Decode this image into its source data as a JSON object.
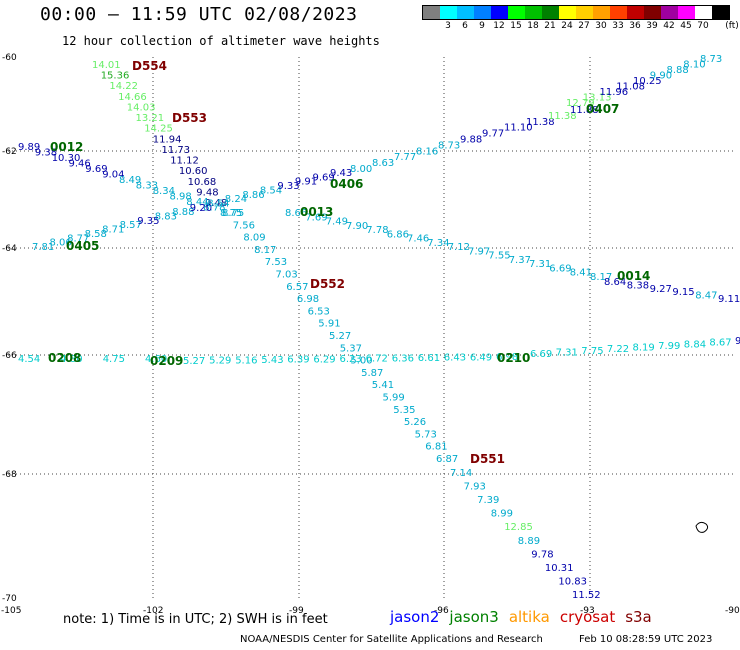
{
  "header": {
    "title": "00:00 – 11:59 UTC 02/08/2023",
    "subtitle": "12 hour collection of altimeter wave heights"
  },
  "legend": {
    "unit": "(ft)",
    "bins": [
      {
        "color": "#7f7f7f",
        "label": ""
      },
      {
        "color": "#00ffff",
        "label": "3"
      },
      {
        "color": "#00bfff",
        "label": "6"
      },
      {
        "color": "#0080ff",
        "label": "9"
      },
      {
        "color": "#0000ff",
        "label": "12"
      },
      {
        "color": "#00ff00",
        "label": "15"
      },
      {
        "color": "#00c000",
        "label": "18"
      },
      {
        "color": "#008000",
        "label": "21"
      },
      {
        "color": "#ffff00",
        "label": "24"
      },
      {
        "color": "#ffd000",
        "label": "27"
      },
      {
        "color": "#ffa000",
        "label": "30"
      },
      {
        "color": "#ff4000",
        "label": "33"
      },
      {
        "color": "#c00000",
        "label": "36"
      },
      {
        "color": "#800000",
        "label": "39"
      },
      {
        "color": "#a000a0",
        "label": "42"
      },
      {
        "color": "#ff00ff",
        "label": "45"
      },
      {
        "color": "#ffffff",
        "label": "70"
      },
      {
        "color": "#000000",
        "label": ""
      }
    ]
  },
  "map": {
    "lon_labels": [
      "-105",
      "-102",
      "-99",
      "-96",
      "-93",
      "-90"
    ],
    "lat_labels": [
      "-60",
      "-62",
      "-64",
      "-66",
      "-68",
      "-70"
    ],
    "tracks": [
      {
        "id": "D554",
        "label_color": "#800000",
        "points": [
          {
            "t": "14.01",
            "c": "#66ee66"
          },
          {
            "t": "15.36",
            "c": "#22aa22"
          },
          {
            "t": "14.22",
            "c": "#66ee66"
          },
          {
            "t": "14.66",
            "c": "#66ee66"
          },
          {
            "t": "14.03",
            "c": "#66ee66"
          },
          {
            "t": "13.21",
            "c": "#66ee66"
          },
          {
            "t": "14.25",
            "c": "#66ee66"
          },
          {
            "t": "11.94",
            "c": "#000080"
          },
          {
            "t": "11.73",
            "c": "#000080"
          },
          {
            "t": "11.12",
            "c": "#000080"
          },
          {
            "t": "10.60",
            "c": "#000080"
          },
          {
            "t": "10.68",
            "c": "#000080"
          },
          {
            "t": "9.48",
            "c": "#000080"
          },
          {
            "t": "9.48",
            "c": "#000080"
          }
        ]
      },
      {
        "id": "D553",
        "label_color": "#800000",
        "points": []
      },
      {
        "id": "D552",
        "label_color": "#800000",
        "points": [
          {
            "t": "8.75",
            "c": "#00aacc"
          },
          {
            "t": "7.56",
            "c": "#00aacc"
          },
          {
            "t": "8.09",
            "c": "#00aacc"
          },
          {
            "t": "8.17",
            "c": "#00aacc"
          },
          {
            "t": "7.53",
            "c": "#00aacc"
          },
          {
            "t": "7.03",
            "c": "#00aacc"
          },
          {
            "t": "6.57",
            "c": "#00aacc"
          },
          {
            "t": "6.98",
            "c": "#00aacc"
          },
          {
            "t": "6.53",
            "c": "#00aacc"
          },
          {
            "t": "5.91",
            "c": "#00aacc"
          },
          {
            "t": "5.27",
            "c": "#00aacc"
          },
          {
            "t": "5.37",
            "c": "#00aacc"
          },
          {
            "t": "5.00",
            "c": "#00aacc"
          },
          {
            "t": "5.87",
            "c": "#00aacc"
          },
          {
            "t": "5.41",
            "c": "#00aacc"
          },
          {
            "t": "5.99",
            "c": "#00aacc"
          },
          {
            "t": "5.35",
            "c": "#00aacc"
          },
          {
            "t": "5.26",
            "c": "#00aacc"
          },
          {
            "t": "5.73",
            "c": "#00aacc"
          },
          {
            "t": "6.81",
            "c": "#00aacc"
          },
          {
            "t": "6.87",
            "c": "#00aacc"
          }
        ]
      },
      {
        "id": "D551",
        "label_color": "#800000",
        "points": [
          {
            "t": "7.14",
            "c": "#00aacc"
          },
          {
            "t": "7.93",
            "c": "#00aacc"
          },
          {
            "t": "7.39",
            "c": "#00aacc"
          },
          {
            "t": "8.99",
            "c": "#00aacc"
          },
          {
            "t": "12.85",
            "c": "#66ee66"
          },
          {
            "t": "8.89",
            "c": "#00aacc"
          },
          {
            "t": "9.78",
            "c": "#0000aa"
          },
          {
            "t": "10.31",
            "c": "#0000aa"
          },
          {
            "t": "10.83",
            "c": "#0000aa"
          },
          {
            "t": "11.52",
            "c": "#0000aa"
          }
        ]
      },
      {
        "id": "0012",
        "label_color": "#006600",
        "points": [
          {
            "t": "9.89",
            "c": "#0000aa"
          },
          {
            "t": "9.38",
            "c": "#0000aa"
          },
          {
            "t": "10.30",
            "c": "#0000aa"
          },
          {
            "t": "9.46",
            "c": "#0000aa"
          },
          {
            "t": "9.69",
            "c": "#0000aa"
          },
          {
            "t": "9.04",
            "c": "#0000aa"
          },
          {
            "t": "8.49",
            "c": "#00aacc"
          },
          {
            "t": "8.33",
            "c": "#00aacc"
          },
          {
            "t": "8.34",
            "c": "#00aacc"
          },
          {
            "t": "8.98",
            "c": "#00aacc"
          },
          {
            "t": "8.44",
            "c": "#00aacc"
          },
          {
            "t": "8.78",
            "c": "#00aacc"
          },
          {
            "t": "8.75",
            "c": "#00aacc"
          }
        ]
      },
      {
        "id": "0013",
        "label_color": "#006600",
        "points": [
          {
            "t": "8.66",
            "c": "#00aacc"
          },
          {
            "t": "7.69",
            "c": "#00aacc"
          },
          {
            "t": "7.49",
            "c": "#00aacc"
          },
          {
            "t": "7.90",
            "c": "#00aacc"
          },
          {
            "t": "7.78",
            "c": "#00aacc"
          },
          {
            "t": "6.86",
            "c": "#00aacc"
          },
          {
            "t": "7.46",
            "c": "#00aacc"
          },
          {
            "t": "7.34",
            "c": "#00aacc"
          },
          {
            "t": "7.12",
            "c": "#00aacc"
          },
          {
            "t": "7.97",
            "c": "#00aacc"
          },
          {
            "t": "7.55",
            "c": "#00aacc"
          },
          {
            "t": "7.37",
            "c": "#00aacc"
          },
          {
            "t": "7.31",
            "c": "#00aacc"
          },
          {
            "t": "6.69",
            "c": "#00aacc"
          },
          {
            "t": "8.41",
            "c": "#00aacc"
          },
          {
            "t": "8.17",
            "c": "#00aacc"
          }
        ]
      },
      {
        "id": "0014",
        "label_color": "#006600",
        "points": [
          {
            "t": "8.64",
            "c": "#0000aa"
          },
          {
            "t": "8.38",
            "c": "#0000aa"
          },
          {
            "t": "9.27",
            "c": "#0000aa"
          },
          {
            "t": "9.15",
            "c": "#0000aa"
          },
          {
            "t": "8.47",
            "c": "#00aacc"
          },
          {
            "t": "9.11",
            "c": "#0000aa"
          }
        ]
      },
      {
        "id": "0405",
        "label_color": "#006600",
        "points": [
          {
            "t": "7.81",
            "c": "#00aacc"
          },
          {
            "t": "8.06",
            "c": "#00aacc"
          },
          {
            "t": "8.77",
            "c": "#00aacc"
          },
          {
            "t": "8.58",
            "c": "#00aacc"
          },
          {
            "t": "8.71",
            "c": "#00aacc"
          },
          {
            "t": "8.57",
            "c": "#00aacc"
          },
          {
            "t": "9.35",
            "c": "#0000aa"
          },
          {
            "t": "8.83",
            "c": "#00aacc"
          },
          {
            "t": "8.88",
            "c": "#00aacc"
          },
          {
            "t": "9.20",
            "c": "#0000aa"
          },
          {
            "t": "8.54",
            "c": "#00aacc"
          },
          {
            "t": "8.24",
            "c": "#00aacc"
          },
          {
            "t": "8.86",
            "c": "#00aacc"
          },
          {
            "t": "8.54",
            "c": "#00aacc"
          },
          {
            "t": "9.33",
            "c": "#0000aa"
          },
          {
            "t": "9.91",
            "c": "#0000aa"
          },
          {
            "t": "9.69",
            "c": "#0000aa"
          },
          {
            "t": "9.43",
            "c": "#0000aa"
          }
        ]
      },
      {
        "id": "0406",
        "label_color": "#006600",
        "points": [
          {
            "t": "8.00",
            "c": "#00aacc"
          },
          {
            "t": "8.63",
            "c": "#00aacc"
          },
          {
            "t": "7.77",
            "c": "#00aacc"
          },
          {
            "t": "8.16",
            "c": "#00aacc"
          },
          {
            "t": "8.73",
            "c": "#00aacc"
          },
          {
            "t": "9.88",
            "c": "#0000aa"
          },
          {
            "t": "9.77",
            "c": "#0000aa"
          },
          {
            "t": "11.10",
            "c": "#0000aa"
          },
          {
            "t": "11.38",
            "c": "#0000aa"
          },
          {
            "t": "11.38",
            "c": "#66ee66"
          },
          {
            "t": "11.88",
            "c": "#0000aa"
          }
        ]
      },
      {
        "id": "0407",
        "label_color": "#006600",
        "points": [
          {
            "t": "12.79",
            "c": "#66ee66"
          },
          {
            "t": "13.13",
            "c": "#66ee66"
          },
          {
            "t": "11.96",
            "c": "#0000aa"
          },
          {
            "t": "11.08",
            "c": "#0000aa"
          },
          {
            "t": "10.25",
            "c": "#0000aa"
          },
          {
            "t": "9.90",
            "c": "#00aacc"
          },
          {
            "t": "8.88",
            "c": "#00aacc"
          },
          {
            "t": "8.10",
            "c": "#00aacc"
          },
          {
            "t": "8.73",
            "c": "#00aacc"
          }
        ]
      },
      {
        "id": "0208",
        "label_color": "#006600",
        "points": [
          {
            "t": "4.54",
            "c": "#00cccc"
          },
          {
            "t": "4.80",
            "c": "#00cccc"
          },
          {
            "t": "4.75",
            "c": "#00cccc"
          },
          {
            "t": "4.60",
            "c": "#00cccc"
          }
        ]
      },
      {
        "id": "0209",
        "label_color": "#006600",
        "points": [
          {
            "t": "5.27",
            "c": "#00cccc"
          },
          {
            "t": "5.29",
            "c": "#00cccc"
          },
          {
            "t": "5.16",
            "c": "#00cccc"
          },
          {
            "t": "5.43",
            "c": "#00cccc"
          },
          {
            "t": "6.39",
            "c": "#00cccc"
          },
          {
            "t": "6.29",
            "c": "#00cccc"
          },
          {
            "t": "6.23",
            "c": "#00cccc"
          },
          {
            "t": "6.72",
            "c": "#00cccc"
          },
          {
            "t": "6.36",
            "c": "#00cccc"
          },
          {
            "t": "6.61",
            "c": "#00cccc"
          },
          {
            "t": "6.43",
            "c": "#00cccc"
          },
          {
            "t": "6.49",
            "c": "#00cccc"
          },
          {
            "t": "6.98",
            "c": "#00cccc"
          }
        ]
      },
      {
        "id": "0210",
        "label_color": "#006600",
        "points": [
          {
            "t": "6.69",
            "c": "#00cccc"
          },
          {
            "t": "7.31",
            "c": "#00cccc"
          },
          {
            "t": "7.75",
            "c": "#00cccc"
          },
          {
            "t": "7.22",
            "c": "#00cccc"
          },
          {
            "t": "8.19",
            "c": "#00cccc"
          },
          {
            "t": "7.99",
            "c": "#00cccc"
          },
          {
            "t": "8.84",
            "c": "#00cccc"
          },
          {
            "t": "8.67",
            "c": "#00cccc"
          },
          {
            "t": "9",
            "c": "#0000aa"
          }
        ]
      }
    ]
  },
  "footer": {
    "note": "note: 1) Time is in UTC; 2) SWH is in feet",
    "satellites": [
      {
        "name": "jason2",
        "color": "#0000ff"
      },
      {
        "name": "jason3",
        "color": "#008000"
      },
      {
        "name": "altika",
        "color": "#ff9900"
      },
      {
        "name": "cryosat",
        "color": "#cc0000"
      },
      {
        "name": "s3a",
        "color": "#800000"
      }
    ],
    "credit": "NOAA/NESDIS Center for Satellite Applications and Research",
    "generated": "Feb 10 08:28:59 UTC 2023"
  }
}
